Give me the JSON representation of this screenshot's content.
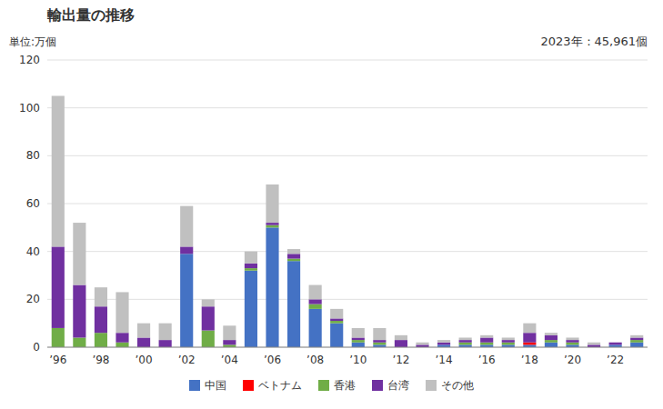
{
  "chart_data": {
    "type": "bar",
    "stacked": true,
    "title": "輸出量の推移",
    "y_label": "単位:万個",
    "annotation": "2023年：45,961個",
    "categories": [
      "’96",
      null,
      "’98",
      null,
      "’00",
      null,
      "’02",
      null,
      "’04",
      null,
      "’06",
      null,
      "’08",
      null,
      "’10",
      null,
      "’12",
      null,
      "’14",
      null,
      "’16",
      null,
      "’18",
      null,
      "’20",
      null,
      "’22",
      null
    ],
    "series": [
      {
        "name": "中国",
        "color": "#4472c4",
        "values": [
          0,
          0,
          0,
          0,
          0,
          0,
          39,
          0,
          0,
          32,
          50,
          36,
          16,
          10,
          2,
          1,
          0,
          0,
          1,
          1,
          1,
          1,
          1,
          2,
          1,
          0,
          1,
          2
        ]
      },
      {
        "name": "ベトナム",
        "color": "#ff0000",
        "values": [
          0,
          0,
          0,
          0,
          0,
          0,
          0,
          0,
          0,
          0,
          0,
          0,
          0,
          0,
          0,
          0,
          0,
          0,
          0,
          0,
          0,
          0,
          1,
          0,
          0,
          0,
          0,
          0
        ]
      },
      {
        "name": "香港",
        "color": "#70ad47",
        "values": [
          8,
          4,
          6,
          2,
          0,
          0,
          0,
          7,
          1,
          1,
          1,
          1,
          2,
          1,
          1,
          1,
          0,
          0,
          0,
          1,
          1,
          1,
          0,
          1,
          1,
          0,
          0,
          1
        ]
      },
      {
        "name": "台湾",
        "color": "#7030a0",
        "values": [
          34,
          22,
          11,
          4,
          4,
          3,
          3,
          10,
          2,
          2,
          1,
          2,
          2,
          1,
          1,
          1,
          3,
          1,
          1,
          1,
          2,
          1,
          4,
          2,
          1,
          1,
          1,
          1
        ]
      },
      {
        "name": "その他",
        "color": "#c0c0c0",
        "values": [
          63,
          26,
          8,
          17,
          6,
          7,
          17,
          3,
          6,
          5,
          16,
          2,
          6,
          4,
          4,
          5,
          2,
          1,
          1,
          1,
          1,
          1,
          4,
          1,
          1,
          1,
          0,
          1
        ]
      }
    ],
    "ylim": [
      0,
      120
    ],
    "yticks": [
      0,
      20,
      40,
      60,
      80,
      100,
      120
    ],
    "grid": true,
    "legend": "bottom"
  }
}
